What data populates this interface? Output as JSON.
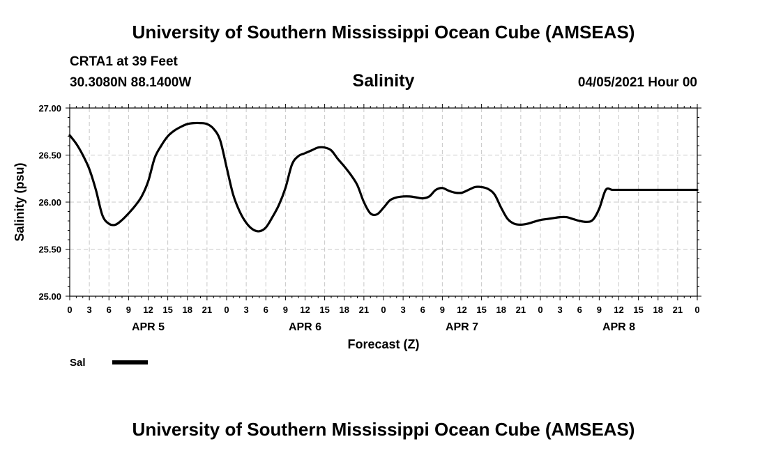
{
  "header": {
    "title": "University of Southern Mississippi Ocean Cube (AMSEAS)",
    "station": "CRTA1 at 39 Feet",
    "coords": "30.3080N  88.1400W",
    "parameter": "Salinity",
    "datetime": "04/05/2021 Hour 00"
  },
  "footer": {
    "title": "University of Southern Mississippi Ocean Cube (AMSEAS)"
  },
  "chart_data": {
    "type": "line",
    "title": "Salinity",
    "xlabel": "Forecast (Z)",
    "ylabel": "Salinity (psu)",
    "ylim": [
      25.0,
      27.0
    ],
    "yticks": [
      "25.00",
      "25.50",
      "26.00",
      "26.50",
      "27.00"
    ],
    "xlim": [
      0,
      96
    ],
    "xtick_labels": [
      "0",
      "3",
      "6",
      "9",
      "12",
      "15",
      "18",
      "21",
      "0",
      "3",
      "6",
      "9",
      "12",
      "15",
      "18",
      "21",
      "0",
      "3",
      "6",
      "9",
      "12",
      "15",
      "18",
      "21",
      "0",
      "3",
      "6",
      "9",
      "12",
      "15",
      "18",
      "21",
      "0"
    ],
    "day_labels": [
      {
        "label": "APR 5",
        "hour": 12
      },
      {
        "label": "APR 6",
        "hour": 36
      },
      {
        "label": "APR 7",
        "hour": 60
      },
      {
        "label": "APR 8",
        "hour": 84
      }
    ],
    "grid": true,
    "legend": [
      {
        "name": "Sal"
      }
    ],
    "series": [
      {
        "name": "Sal",
        "x": [
          0,
          1,
          2,
          3,
          4,
          5,
          6,
          7,
          8,
          9,
          10,
          11,
          12,
          13,
          14,
          15,
          16,
          17,
          18,
          19,
          20,
          21,
          22,
          23,
          24,
          25,
          26,
          27,
          28,
          29,
          30,
          31,
          32,
          33,
          34,
          35,
          36,
          37,
          38,
          39,
          40,
          41,
          42,
          43,
          44,
          45,
          46,
          47,
          48,
          49,
          50,
          51,
          52,
          53,
          54,
          55,
          56,
          57,
          58,
          59,
          60,
          61,
          62,
          63,
          64,
          65,
          66,
          67,
          68,
          69,
          70,
          71,
          72,
          73,
          74,
          75,
          76,
          77,
          78,
          79,
          80,
          81,
          82,
          83,
          84,
          85,
          86,
          87,
          88,
          89,
          90,
          91,
          92,
          93,
          94,
          95,
          96
        ],
        "values": [
          26.71,
          26.62,
          26.5,
          26.35,
          26.13,
          25.86,
          25.77,
          25.76,
          25.81,
          25.88,
          25.96,
          26.06,
          26.22,
          26.47,
          26.6,
          26.7,
          26.76,
          26.8,
          26.83,
          26.84,
          26.84,
          26.83,
          26.78,
          26.66,
          26.37,
          26.08,
          25.9,
          25.78,
          25.71,
          25.69,
          25.73,
          25.84,
          25.97,
          26.15,
          26.4,
          26.49,
          26.52,
          26.55,
          26.58,
          26.58,
          26.55,
          26.46,
          26.38,
          26.29,
          26.18,
          26.0,
          25.88,
          25.87,
          25.94,
          26.02,
          26.05,
          26.06,
          26.06,
          26.05,
          26.04,
          26.06,
          26.13,
          26.15,
          26.12,
          26.1,
          26.1,
          26.13,
          26.16,
          26.16,
          26.14,
          26.08,
          25.94,
          25.82,
          25.77,
          25.76,
          25.77,
          25.79,
          25.81,
          25.82,
          25.83,
          25.84,
          25.84,
          25.82,
          25.8,
          25.79,
          25.81,
          25.93,
          26.13,
          26.13,
          26.13,
          26.13,
          26.13,
          26.13,
          26.13,
          26.13,
          26.13,
          26.13,
          26.13,
          26.13,
          26.13,
          26.13,
          26.13
        ]
      }
    ]
  }
}
